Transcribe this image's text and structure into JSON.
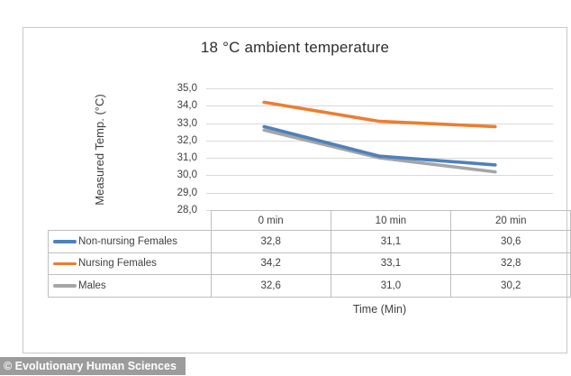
{
  "footer": {
    "copyright": "© Evolutionary Human Sciences"
  },
  "chart_data": {
    "type": "line",
    "title": "18 °C ambient temperature",
    "xlabel": "Time (Min)",
    "ylabel": "Measured Temp. (°C)",
    "categories": [
      "0 min",
      "10 min",
      "20 min"
    ],
    "series": [
      {
        "name": "Non-nursing Females",
        "color": "#4E81BD",
        "values": [
          32.8,
          31.1,
          30.6
        ],
        "values_display": [
          "32,8",
          "31,1",
          "30,6"
        ]
      },
      {
        "name": "Nursing Females",
        "color": "#ED7D31",
        "values": [
          34.2,
          33.1,
          32.8
        ],
        "values_display": [
          "34,2",
          "33,1",
          "32,8"
        ]
      },
      {
        "name": "Males",
        "color": "#A5A5A5",
        "values": [
          32.6,
          31.0,
          30.2
        ],
        "values_display": [
          "32,6",
          "31,0",
          "30,2"
        ]
      }
    ],
    "ylim": [
      28.0,
      35.0
    ],
    "ytick_step": 1.0,
    "ytick_labels": [
      "35,0",
      "34,0",
      "33,0",
      "32,0",
      "31,0",
      "30,0",
      "29,0",
      "28,0"
    ],
    "grid": true,
    "legend_position": "table-left",
    "decimal_separator": ","
  }
}
